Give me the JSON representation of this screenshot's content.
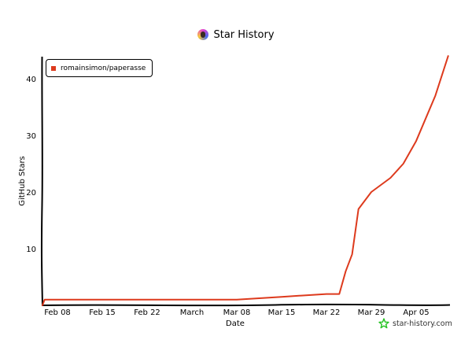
{
  "header": {
    "title": "Star History",
    "avatar_icon": "user-avatar"
  },
  "legend": {
    "items": [
      {
        "label": "romainsimon/paperasse",
        "color": "#dd3a1d"
      }
    ]
  },
  "watermark": {
    "label": "star-history.com",
    "icon": "star-icon",
    "icon_color": "#22c21f"
  },
  "chart_data": {
    "type": "line",
    "title": "Star History",
    "xlabel": "Date",
    "ylabel": "GitHub Stars",
    "x_ticks": [
      "Feb 08",
      "Feb 15",
      "Feb 22",
      "March",
      "Mar 08",
      "Mar 15",
      "Mar 22",
      "Mar 29",
      "Apr 05"
    ],
    "y_ticks": [
      10,
      20,
      30,
      40
    ],
    "ylim": [
      0,
      44
    ],
    "grid": false,
    "legend_position": "top-left",
    "series": [
      {
        "name": "romainsimon/paperasse",
        "color": "#dd3a1d",
        "points": [
          {
            "x": "Feb 06",
            "y": 1
          },
          {
            "x": "Feb 15",
            "y": 1
          },
          {
            "x": "Feb 22",
            "y": 1
          },
          {
            "x": "Mar 01",
            "y": 1
          },
          {
            "x": "Mar 08",
            "y": 1
          },
          {
            "x": "Mar 15",
            "y": 1.5
          },
          {
            "x": "Mar 22",
            "y": 2
          },
          {
            "x": "Mar 24",
            "y": 2
          },
          {
            "x": "Mar 25",
            "y": 6
          },
          {
            "x": "Mar 26",
            "y": 9
          },
          {
            "x": "Mar 27",
            "y": 17
          },
          {
            "x": "Mar 29",
            "y": 20
          },
          {
            "x": "Apr 01",
            "y": 22.5
          },
          {
            "x": "Apr 03",
            "y": 25
          },
          {
            "x": "Apr 05",
            "y": 29
          },
          {
            "x": "Apr 08",
            "y": 37
          },
          {
            "x": "Apr 10",
            "y": 44
          }
        ]
      }
    ]
  }
}
